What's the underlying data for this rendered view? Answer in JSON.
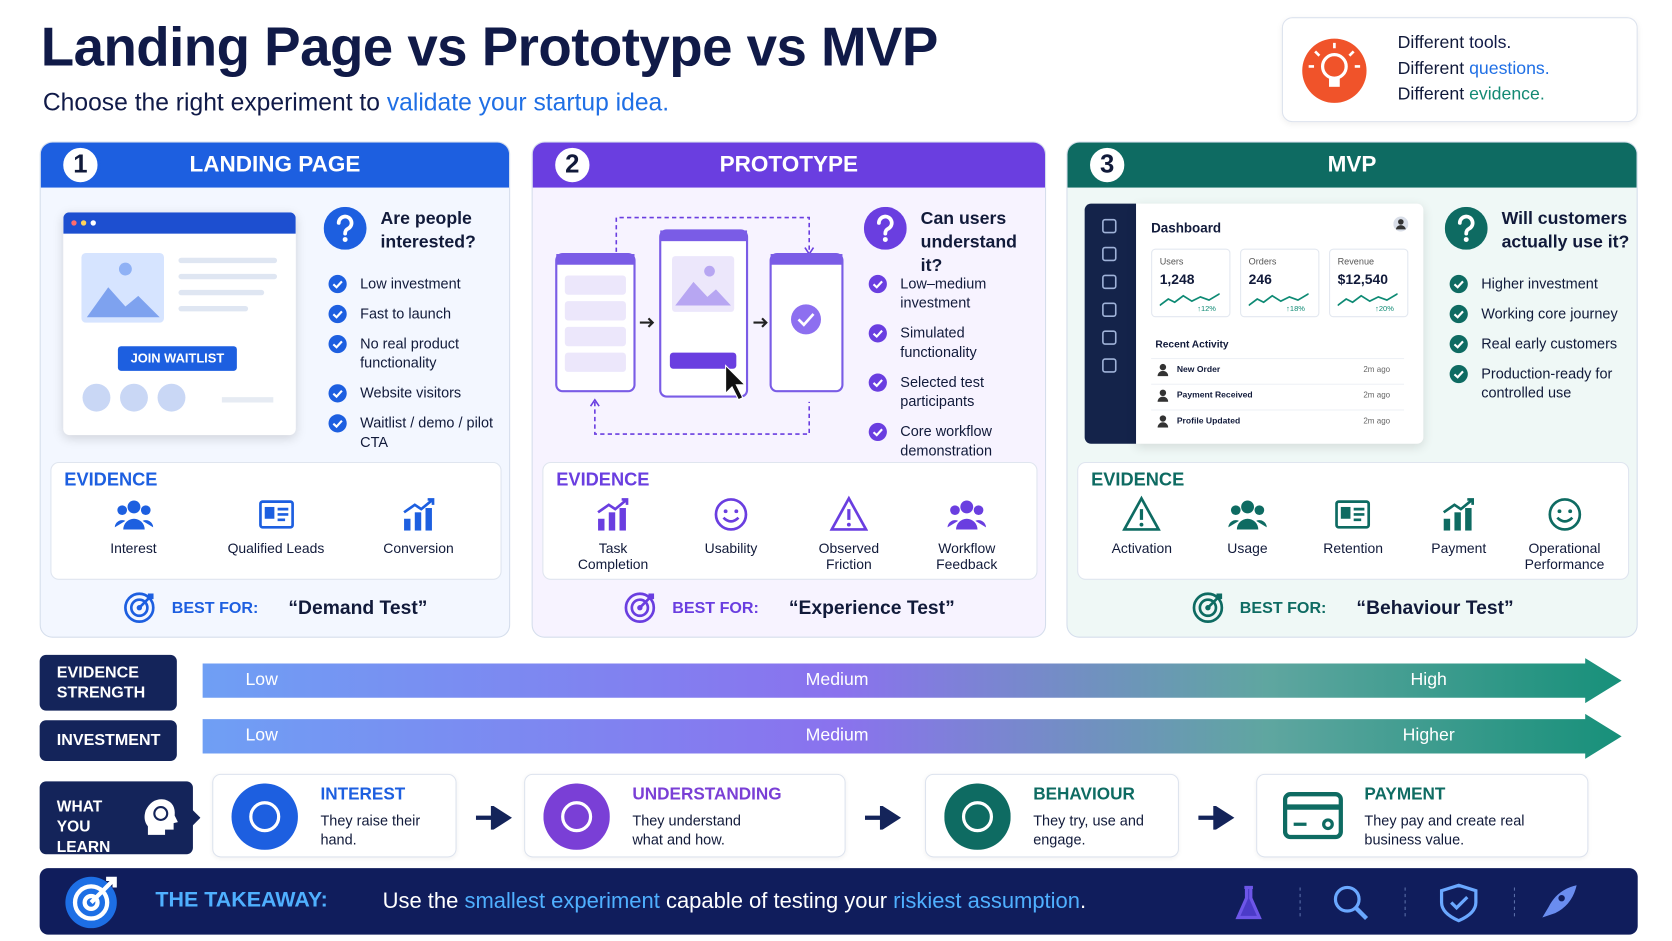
{
  "header": {
    "title": "Landing Page vs Prototype vs MVP",
    "subtitle_prefix": "Choose the right experiment to ",
    "subtitle_highlight": "validate your startup idea."
  },
  "tagline": [
    {
      "prefix": "Different ",
      "word": "tools."
    },
    {
      "prefix": "Different ",
      "word": "questions."
    },
    {
      "prefix": "Different ",
      "word": "evidence."
    }
  ],
  "columns": [
    {
      "number": "1",
      "title": "LANDING PAGE",
      "question": "Are people interested?",
      "points": [
        "Low investment",
        "Fast to launch",
        "No real product functionality",
        "Website visitors",
        "Waitlist / demo / pilot CTA"
      ],
      "evidence_label": "EVIDENCE",
      "evidence": [
        "Interest",
        "Qualified Leads",
        "Conversion"
      ],
      "best_for_label": "BEST FOR:",
      "best_for": "“Demand Test”"
    },
    {
      "number": "2",
      "title": "PROTOTYPE",
      "question": "Can users understand it?",
      "points": [
        "Low–medium investment",
        "Simulated functionality",
        "Selected test participants",
        "Core workflow demonstration"
      ],
      "evidence_label": "EVIDENCE",
      "evidence": [
        "Task Completion",
        "Usability",
        "Observed Friction",
        "Workflow Feedback"
      ],
      "best_for_label": "BEST FOR:",
      "best_for": "“Experience Test”"
    },
    {
      "number": "3",
      "title": "MVP",
      "question": "Will customers actually use it?",
      "points": [
        "Higher investment",
        "Working core journey",
        "Real early customers",
        "Production-ready for controlled use"
      ],
      "evidence_label": "EVIDENCE",
      "evidence": [
        "Activation",
        "Usage",
        "Retention",
        "Payment",
        "Operational Performance"
      ],
      "best_for_label": "BEST FOR:",
      "best_for": "“Behaviour Test”"
    }
  ],
  "landing_mock": {
    "button": "JOIN WAITLIST"
  },
  "dashboard_mock": {
    "title": "Dashboard",
    "stats": [
      {
        "label": "Users",
        "value": "1,248",
        "change": "↑12%"
      },
      {
        "label": "Orders",
        "value": "246",
        "change": "↑18%"
      },
      {
        "label": "Revenue",
        "value": "$12,540",
        "change": "↑20%"
      }
    ],
    "activity_title": "Recent Activity",
    "activity": [
      {
        "item": "New Order",
        "time": "2m ago"
      },
      {
        "item": "Payment Received",
        "time": "2m ago"
      },
      {
        "item": "Profile Updated",
        "time": "2m ago"
      }
    ]
  },
  "scales": [
    {
      "label": "EVIDENCE STRENGTH",
      "levels": [
        "Low",
        "Medium",
        "High"
      ]
    },
    {
      "label": "INVESTMENT",
      "levels": [
        "Low",
        "Medium",
        "Higher"
      ]
    }
  ],
  "learn": {
    "label": "WHAT YOU LEARN",
    "steps": [
      {
        "title": "INTEREST",
        "text": "They raise their hand."
      },
      {
        "title": "UNDERSTANDING",
        "text": "They understand what and how."
      },
      {
        "title": "BEHAVIOUR",
        "text": "They try, use and engage."
      },
      {
        "title": "PAYMENT",
        "text": "They pay and create real business value."
      }
    ]
  },
  "takeaway": {
    "label": "THE TAKEAWAY:",
    "parts": [
      "Use the ",
      "smallest experiment",
      " capable of testing your ",
      "riskiest assumption",
      "."
    ]
  }
}
